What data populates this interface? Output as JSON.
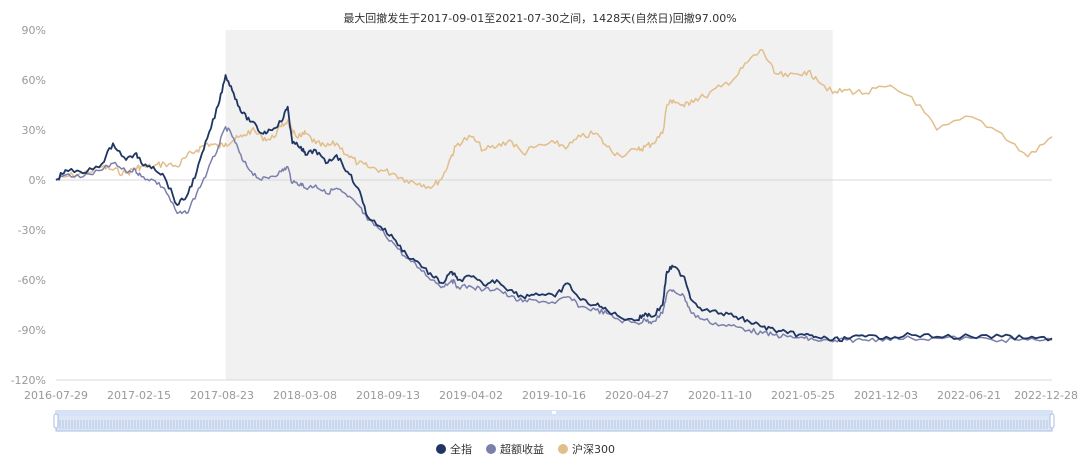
{
  "chart_data": {
    "type": "line",
    "title": "最大回撤发生于2017-09-01至2021-07-30之间，1428天(自然日)回撤97.00%",
    "xlabel": "",
    "ylabel": "",
    "ylim": [
      -120,
      90
    ],
    "y_ticks": [
      "90%",
      "60%",
      "30%",
      "0%",
      "-30%",
      "-60%",
      "-90%",
      "-120%"
    ],
    "y_tick_values": [
      90,
      60,
      30,
      0,
      -30,
      -60,
      -90,
      -120
    ],
    "x_range": [
      "2016-07-29",
      "2022-12-28"
    ],
    "x_ticks": [
      "2016-07-29",
      "2017-02-15",
      "2017-08-23",
      "2018-03-08",
      "2018-09-13",
      "2019-04-02",
      "2019-10-16",
      "2020-04-27",
      "2020-11-10",
      "2021-05-25",
      "2021-12-03",
      "2022-06-21",
      "2022-12-28"
    ],
    "drawdown_period": [
      "2017-09-01",
      "2021-07-30"
    ],
    "grid": false,
    "legend_position": "bottom",
    "series": [
      {
        "name": "全指",
        "color": "#1f3562",
        "points": [
          [
            "2016-07-29",
            0
          ],
          [
            "2016-08-20",
            6
          ],
          [
            "2016-10-01",
            4
          ],
          [
            "2016-11-15",
            10
          ],
          [
            "2016-12-10",
            22
          ],
          [
            "2017-01-10",
            12
          ],
          [
            "2017-02-01",
            16
          ],
          [
            "2017-02-15",
            10
          ],
          [
            "2017-03-15",
            8
          ],
          [
            "2017-04-10",
            2
          ],
          [
            "2017-05-10",
            -15
          ],
          [
            "2017-06-01",
            -10
          ],
          [
            "2017-06-25",
            5
          ],
          [
            "2017-07-20",
            25
          ],
          [
            "2017-08-15",
            45
          ],
          [
            "2017-09-01",
            63
          ],
          [
            "2017-09-20",
            52
          ],
          [
            "2017-10-10",
            40
          ],
          [
            "2017-11-01",
            35
          ],
          [
            "2017-11-25",
            28
          ],
          [
            "2017-12-15",
            30
          ],
          [
            "2018-01-10",
            35
          ],
          [
            "2018-01-25",
            44
          ],
          [
            "2018-02-05",
            22
          ],
          [
            "2018-02-25",
            20
          ],
          [
            "2018-03-08",
            15
          ],
          [
            "2018-04-01",
            18
          ],
          [
            "2018-04-25",
            10
          ],
          [
            "2018-05-20",
            15
          ],
          [
            "2018-06-15",
            5
          ],
          [
            "2018-07-10",
            -5
          ],
          [
            "2018-08-01",
            -22
          ],
          [
            "2018-09-01",
            -28
          ],
          [
            "2018-10-01",
            -35
          ],
          [
            "2018-11-01",
            -45
          ],
          [
            "2018-12-01",
            -50
          ],
          [
            "2019-01-01",
            -58
          ],
          [
            "2019-01-25",
            -62
          ],
          [
            "2019-02-15",
            -55
          ],
          [
            "2019-03-01",
            -60
          ],
          [
            "2019-04-02",
            -58
          ],
          [
            "2019-05-01",
            -63
          ],
          [
            "2019-06-01",
            -60
          ],
          [
            "2019-07-01",
            -66
          ],
          [
            "2019-08-01",
            -70
          ],
          [
            "2019-09-01",
            -68
          ],
          [
            "2019-10-16",
            -70
          ],
          [
            "2019-11-15",
            -62
          ],
          [
            "2019-12-15",
            -72
          ],
          [
            "2020-01-20",
            -75
          ],
          [
            "2020-02-15",
            -78
          ],
          [
            "2020-03-15",
            -82
          ],
          [
            "2020-04-27",
            -84
          ],
          [
            "2020-05-15",
            -80
          ],
          [
            "2020-06-01",
            -82
          ],
          [
            "2020-06-25",
            -75
          ],
          [
            "2020-07-05",
            -55
          ],
          [
            "2020-07-20",
            -52
          ],
          [
            "2020-08-15",
            -58
          ],
          [
            "2020-09-01",
            -72
          ],
          [
            "2020-10-01",
            -78
          ],
          [
            "2020-11-10",
            -80
          ],
          [
            "2020-12-15",
            -82
          ],
          [
            "2021-01-15",
            -85
          ],
          [
            "2021-02-15",
            -88
          ],
          [
            "2021-03-15",
            -90
          ],
          [
            "2021-04-15",
            -92
          ],
          [
            "2021-05-25",
            -93
          ],
          [
            "2021-06-20",
            -94
          ],
          [
            "2021-07-30",
            -96
          ],
          [
            "2021-09-01",
            -95
          ],
          [
            "2021-10-15",
            -94
          ],
          [
            "2021-12-03",
            -94
          ],
          [
            "2022-02-01",
            -93
          ],
          [
            "2022-04-01",
            -94
          ],
          [
            "2022-06-21",
            -94
          ],
          [
            "2022-09-01",
            -94
          ],
          [
            "2022-11-01",
            -95
          ],
          [
            "2022-12-28",
            -95
          ]
        ]
      },
      {
        "name": "超额收益",
        "color": "#7b7fac",
        "points": [
          [
            "2016-07-29",
            0
          ],
          [
            "2016-08-20",
            3
          ],
          [
            "2016-10-01",
            2
          ],
          [
            "2016-11-15",
            6
          ],
          [
            "2016-12-10",
            10
          ],
          [
            "2017-01-10",
            5
          ],
          [
            "2017-02-01",
            6
          ],
          [
            "2017-02-15",
            2
          ],
          [
            "2017-03-15",
            0
          ],
          [
            "2017-04-10",
            -5
          ],
          [
            "2017-05-10",
            -20
          ],
          [
            "2017-06-01",
            -20
          ],
          [
            "2017-06-25",
            -8
          ],
          [
            "2017-07-20",
            5
          ],
          [
            "2017-08-15",
            20
          ],
          [
            "2017-09-01",
            32
          ],
          [
            "2017-09-20",
            25
          ],
          [
            "2017-10-10",
            12
          ],
          [
            "2017-11-01",
            5
          ],
          [
            "2017-11-25",
            0
          ],
          [
            "2017-12-15",
            2
          ],
          [
            "2018-01-10",
            5
          ],
          [
            "2018-01-25",
            8
          ],
          [
            "2018-02-05",
            -2
          ],
          [
            "2018-02-25",
            -2
          ],
          [
            "2018-03-08",
            -5
          ],
          [
            "2018-04-01",
            -3
          ],
          [
            "2018-04-25",
            -8
          ],
          [
            "2018-05-20",
            -5
          ],
          [
            "2018-06-15",
            -10
          ],
          [
            "2018-07-10",
            -15
          ],
          [
            "2018-08-01",
            -24
          ],
          [
            "2018-09-01",
            -30
          ],
          [
            "2018-10-01",
            -38
          ],
          [
            "2018-11-01",
            -47
          ],
          [
            "2018-12-01",
            -53
          ],
          [
            "2019-01-01",
            -60
          ],
          [
            "2019-01-25",
            -64
          ],
          [
            "2019-02-15",
            -60
          ],
          [
            "2019-03-01",
            -64
          ],
          [
            "2019-04-02",
            -64
          ],
          [
            "2019-05-01",
            -66
          ],
          [
            "2019-06-01",
            -65
          ],
          [
            "2019-07-01",
            -70
          ],
          [
            "2019-08-01",
            -73
          ],
          [
            "2019-09-01",
            -72
          ],
          [
            "2019-10-16",
            -74
          ],
          [
            "2019-11-15",
            -70
          ],
          [
            "2019-12-15",
            -76
          ],
          [
            "2020-01-20",
            -78
          ],
          [
            "2020-02-15",
            -80
          ],
          [
            "2020-03-15",
            -84
          ],
          [
            "2020-04-27",
            -86
          ],
          [
            "2020-05-15",
            -84
          ],
          [
            "2020-06-01",
            -85
          ],
          [
            "2020-06-25",
            -80
          ],
          [
            "2020-07-05",
            -68
          ],
          [
            "2020-07-20",
            -66
          ],
          [
            "2020-08-15",
            -70
          ],
          [
            "2020-09-01",
            -80
          ],
          [
            "2020-10-01",
            -84
          ],
          [
            "2020-11-10",
            -87
          ],
          [
            "2020-12-15",
            -88
          ],
          [
            "2021-01-15",
            -90
          ],
          [
            "2021-02-15",
            -92
          ],
          [
            "2021-03-15",
            -93
          ],
          [
            "2021-04-15",
            -94
          ],
          [
            "2021-05-25",
            -95
          ],
          [
            "2021-06-20",
            -96
          ],
          [
            "2021-07-30",
            -97
          ],
          [
            "2021-09-01",
            -96
          ],
          [
            "2021-10-15",
            -96
          ],
          [
            "2021-12-03",
            -95
          ],
          [
            "2022-02-01",
            -95
          ],
          [
            "2022-04-01",
            -95
          ],
          [
            "2022-06-21",
            -95
          ],
          [
            "2022-09-01",
            -96
          ],
          [
            "2022-11-01",
            -96
          ],
          [
            "2022-12-28",
            -96
          ]
        ]
      },
      {
        "name": "沪深300",
        "color": "#e2be8a",
        "points": [
          [
            "2016-07-29",
            0
          ],
          [
            "2016-08-20",
            2
          ],
          [
            "2016-10-01",
            4
          ],
          [
            "2016-11-15",
            8
          ],
          [
            "2016-12-10",
            6
          ],
          [
            "2017-01-10",
            4
          ],
          [
            "2017-02-01",
            7
          ],
          [
            "2017-02-15",
            8
          ],
          [
            "2017-03-15",
            8
          ],
          [
            "2017-04-10",
            10
          ],
          [
            "2017-05-10",
            8
          ],
          [
            "2017-06-01",
            14
          ],
          [
            "2017-06-25",
            18
          ],
          [
            "2017-07-20",
            22
          ],
          [
            "2017-08-15",
            20
          ],
          [
            "2017-09-01",
            22
          ],
          [
            "2017-09-20",
            24
          ],
          [
            "2017-10-10",
            26
          ],
          [
            "2017-11-01",
            30
          ],
          [
            "2017-11-25",
            26
          ],
          [
            "2017-12-15",
            24
          ],
          [
            "2018-01-10",
            32
          ],
          [
            "2018-01-25",
            36
          ],
          [
            "2018-02-05",
            28
          ],
          [
            "2018-02-25",
            26
          ],
          [
            "2018-03-08",
            28
          ],
          [
            "2018-04-01",
            22
          ],
          [
            "2018-04-25",
            20
          ],
          [
            "2018-05-20",
            22
          ],
          [
            "2018-06-15",
            15
          ],
          [
            "2018-07-10",
            10
          ],
          [
            "2018-08-01",
            8
          ],
          [
            "2018-09-01",
            6
          ],
          [
            "2018-10-01",
            4
          ],
          [
            "2018-11-01",
            0
          ],
          [
            "2018-12-01",
            -2
          ],
          [
            "2019-01-01",
            -4
          ],
          [
            "2019-01-25",
            2
          ],
          [
            "2019-02-15",
            15
          ],
          [
            "2019-03-01",
            22
          ],
          [
            "2019-04-02",
            26
          ],
          [
            "2019-05-01",
            18
          ],
          [
            "2019-06-01",
            20
          ],
          [
            "2019-07-01",
            24
          ],
          [
            "2019-08-01",
            16
          ],
          [
            "2019-09-01",
            20
          ],
          [
            "2019-10-16",
            22
          ],
          [
            "2019-11-15",
            20
          ],
          [
            "2019-12-15",
            26
          ],
          [
            "2020-01-20",
            28
          ],
          [
            "2020-02-15",
            20
          ],
          [
            "2020-03-15",
            15
          ],
          [
            "2020-04-27",
            18
          ],
          [
            "2020-05-15",
            20
          ],
          [
            "2020-06-01",
            22
          ],
          [
            "2020-06-25",
            28
          ],
          [
            "2020-07-05",
            45
          ],
          [
            "2020-07-20",
            48
          ],
          [
            "2020-08-15",
            44
          ],
          [
            "2020-09-01",
            48
          ],
          [
            "2020-10-01",
            50
          ],
          [
            "2020-11-10",
            56
          ],
          [
            "2020-12-15",
            62
          ],
          [
            "2021-01-15",
            72
          ],
          [
            "2021-02-15",
            78
          ],
          [
            "2021-03-15",
            64
          ],
          [
            "2021-04-15",
            62
          ],
          [
            "2021-05-25",
            65
          ],
          [
            "2021-06-20",
            62
          ],
          [
            "2021-07-30",
            52
          ],
          [
            "2021-09-01",
            54
          ],
          [
            "2021-10-15",
            52
          ],
          [
            "2021-12-03",
            56
          ],
          [
            "2022-02-01",
            50
          ],
          [
            "2022-04-01",
            30
          ],
          [
            "2022-06-21",
            38
          ],
          [
            "2022-09-01",
            28
          ],
          [
            "2022-11-01",
            14
          ],
          [
            "2022-12-28",
            26
          ]
        ]
      }
    ]
  }
}
